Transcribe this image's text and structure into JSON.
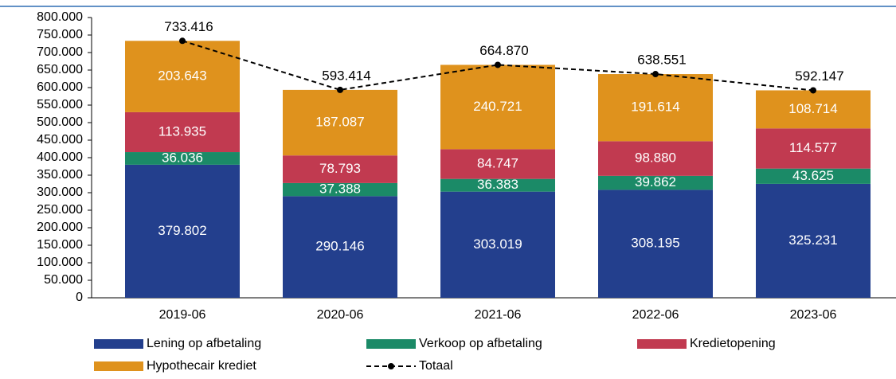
{
  "chart_data": {
    "type": "bar",
    "stacked": true,
    "categories": [
      "2019-06",
      "2020-06",
      "2021-06",
      "2022-06",
      "2023-06"
    ],
    "series": [
      {
        "name": "Lening op afbetaling",
        "color": "#233f8d",
        "values": [
          379802,
          290146,
          303019,
          308195,
          325231
        ],
        "value_labels": [
          "379.802",
          "290.146",
          "303.019",
          "308.195",
          "325.231"
        ]
      },
      {
        "name": "Verkoop op afbetaling",
        "color": "#1b8a67",
        "values": [
          36036,
          37388,
          36383,
          39862,
          43625
        ],
        "value_labels": [
          "36.036",
          "37.388",
          "36.383",
          "39.862",
          "43.625"
        ]
      },
      {
        "name": "Kredietopening",
        "color": "#c13a50",
        "values": [
          113935,
          78793,
          84747,
          98880,
          114577
        ],
        "value_labels": [
          "113.935",
          "78.793",
          "84.747",
          "98.880",
          "114.577"
        ]
      },
      {
        "name": "Hypothecair krediet",
        "color": "#df921d",
        "values": [
          203643,
          187087,
          240721,
          191614,
          108714
        ],
        "value_labels": [
          "203.643",
          "187.087",
          "240.721",
          "191.614",
          "108.714"
        ]
      }
    ],
    "line": {
      "name": "Totaal",
      "color": "#000000",
      "values": [
        733416,
        593414,
        664870,
        638551,
        592147
      ],
      "value_labels": [
        "733.416",
        "593.414",
        "664.870",
        "638.551",
        "592.147"
      ]
    },
    "ylim": [
      0,
      800000
    ],
    "yticks": [
      0,
      {
        "value": 50000,
        "label": "50.000"
      },
      {
        "value": 100000,
        "label": "100.000"
      },
      {
        "value": 150000,
        "label": "150.000"
      },
      {
        "value": 200000,
        "label": "200.000"
      },
      {
        "value": 250000,
        "label": "250.000"
      },
      {
        "value": 300000,
        "label": "300.000"
      },
      {
        "value": 350000,
        "label": "350.000"
      },
      {
        "value": 400000,
        "label": "400.000"
      },
      {
        "value": 450000,
        "label": "450.000"
      },
      {
        "value": 500000,
        "label": "500.000"
      },
      {
        "value": 550000,
        "label": "550.000"
      },
      {
        "value": 600000,
        "label": "600.000"
      },
      {
        "value": 650000,
        "label": "650.000"
      },
      {
        "value": 700000,
        "label": "700.000"
      },
      {
        "value": 750000,
        "label": "750.000"
      },
      {
        "value": 800000,
        "label": "800.000"
      }
    ]
  }
}
